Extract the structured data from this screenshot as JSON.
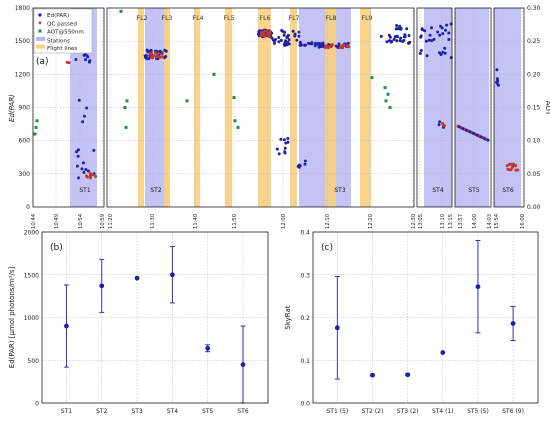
{
  "figure_labels": {
    "a": "(a)",
    "b": "(b)",
    "c": "(c)"
  },
  "chart_data": [
    {
      "panel": "(a)",
      "type": "scatter",
      "ylabel": "Ed(PAR)",
      "y2label": "AOT",
      "ylim": [
        0,
        1800
      ],
      "y2lim": [
        0,
        0.3
      ],
      "yticks": [
        "0",
        "300",
        "600",
        "900",
        "1200",
        "1500",
        "1800"
      ],
      "y2ticks": [
        "0.00",
        "0.05",
        "0.10",
        "0.15",
        "0.20",
        "0.25",
        "0.30"
      ],
      "legend": [
        "Ed(PAR)",
        "QC passed",
        "AOT@550nm",
        "Stations",
        "Flight lines"
      ],
      "legend_position": "top-left",
      "grid": true,
      "colors": {
        "ed": "#1f1fa8",
        "qc": "#c0392b",
        "aot": "#1f8f3a",
        "station": "#b8b8f5",
        "flight": "#f9cf80",
        "grid": "#b5b5b5"
      },
      "segments": [
        {
          "xticks": [
            "10:44",
            "10:49",
            "10:54",
            "10:59"
          ],
          "stations": [
            "ST1"
          ],
          "flight_lines": []
        },
        {
          "xticks": [
            "11:20",
            "11:30",
            "11:40",
            "11:50",
            "12:00",
            "12:10",
            "12:20",
            "12:30"
          ],
          "stations": [
            "ST2",
            "ST3"
          ],
          "flight_lines": [
            "FL2",
            "FL3",
            "FL4",
            "FL5",
            "FL6",
            "FL7",
            "FL8",
            "FL9"
          ]
        },
        {
          "xticks": [
            "13:05",
            "13:10",
            "13:15"
          ],
          "stations": [
            "ST4"
          ],
          "flight_lines": []
        },
        {
          "xticks": [
            "13:57",
            "14:00",
            "14:03"
          ],
          "stations": [
            "ST5"
          ],
          "flight_lines": []
        },
        {
          "xticks": [
            "15:54",
            "16:00"
          ],
          "stations": [
            "ST6"
          ],
          "flight_lines": []
        }
      ]
    },
    {
      "panel": "(b)",
      "type": "scatter",
      "ylabel": "Ed(PAR) [μmol photons/m²/s]",
      "ylim": [
        0,
        2000
      ],
      "yticks": [
        "0",
        "500",
        "1000",
        "1500",
        "2000"
      ],
      "categories": [
        "ST1",
        "ST2",
        "ST3",
        "ST4",
        "ST5",
        "ST6"
      ],
      "values": [
        900,
        1370,
        1460,
        1500,
        640,
        450
      ],
      "errors": [
        480,
        310,
        0,
        330,
        40,
        450
      ],
      "grid": true
    },
    {
      "panel": "(c)",
      "type": "scatter",
      "ylabel": "SkyRat",
      "ylim": [
        0,
        0.4
      ],
      "yticks": [
        "0.0",
        "0.1",
        "0.2",
        "0.3",
        "0.4"
      ],
      "categories": [
        "ST1 (5)",
        "ST2 (2)",
        "ST3 (2)",
        "ST4 (1)",
        "ST5 (5)",
        "ST6 (9)"
      ],
      "values": [
        0.176,
        0.065,
        0.066,
        0.118,
        0.272,
        0.186
      ],
      "errors": [
        0.12,
        0.002,
        0.002,
        0,
        0.108,
        0.04
      ],
      "grid": true
    }
  ]
}
